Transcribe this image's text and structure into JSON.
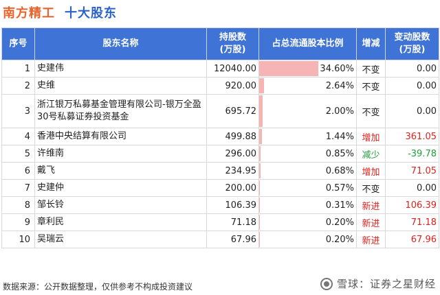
{
  "header": {
    "company": "南方精工",
    "title": "十大股东"
  },
  "table": {
    "columns": [
      "序号",
      "股东名称",
      "持股数\n(万股)",
      "占总流通股本比例",
      "增减",
      "变动股数\n(万股)"
    ],
    "rows": [
      {
        "idx": "1",
        "name": "史建伟",
        "shares": "12040.00",
        "ratio": "34.60%",
        "ratio_value": 34.6,
        "change": "不变",
        "change_type": "same",
        "delta": "0.00"
      },
      {
        "idx": "2",
        "name": "史维",
        "shares": "920.00",
        "ratio": "2.64%",
        "ratio_value": 2.64,
        "change": "不变",
        "change_type": "same",
        "delta": "0.00"
      },
      {
        "idx": "3",
        "name": "浙江银万私募基金管理有限公司-银万全盈30号私募证券投资基金",
        "shares": "695.72",
        "ratio": "2.00%",
        "ratio_value": 2.0,
        "change": "不变",
        "change_type": "same",
        "delta": "0.00"
      },
      {
        "idx": "4",
        "name": "香港中央结算有限公司",
        "shares": "499.88",
        "ratio": "1.44%",
        "ratio_value": 1.44,
        "change": "增加",
        "change_type": "up",
        "delta": "361.05"
      },
      {
        "idx": "5",
        "name": "许维南",
        "shares": "296.00",
        "ratio": "0.85%",
        "ratio_value": 0.85,
        "change": "减少",
        "change_type": "down",
        "delta": "-39.78"
      },
      {
        "idx": "6",
        "name": "戴飞",
        "shares": "234.95",
        "ratio": "0.68%",
        "ratio_value": 0.68,
        "change": "增加",
        "change_type": "up",
        "delta": "71.05"
      },
      {
        "idx": "7",
        "name": "史建仲",
        "shares": "200.00",
        "ratio": "0.57%",
        "ratio_value": 0.57,
        "change": "不变",
        "change_type": "same",
        "delta": "0.00"
      },
      {
        "idx": "8",
        "name": "邹长铃",
        "shares": "106.39",
        "ratio": "0.31%",
        "ratio_value": 0.31,
        "change": "新进",
        "change_type": "up",
        "delta": "106.39"
      },
      {
        "idx": "9",
        "name": "章利民",
        "shares": "71.18",
        "ratio": "0.20%",
        "ratio_value": 0.2,
        "change": "新进",
        "change_type": "up",
        "delta": "71.18"
      },
      {
        "idx": "10",
        "name": "吴瑞云",
        "shares": "67.96",
        "ratio": "0.20%",
        "ratio_value": 0.2,
        "change": "新进",
        "change_type": "up",
        "delta": "67.96"
      }
    ]
  },
  "footer": {
    "source": "数据来源：公开数据整理，仅供参考不构成投资建议",
    "brand": "雪球：证券之星财经"
  },
  "colors": {
    "title_orange": "#e8632b",
    "title_blue": "#2a63c9",
    "header_bg": "#3f73d6",
    "bar": "#f7b4b4",
    "up": "#e0201b",
    "down": "#1e9d3a"
  }
}
